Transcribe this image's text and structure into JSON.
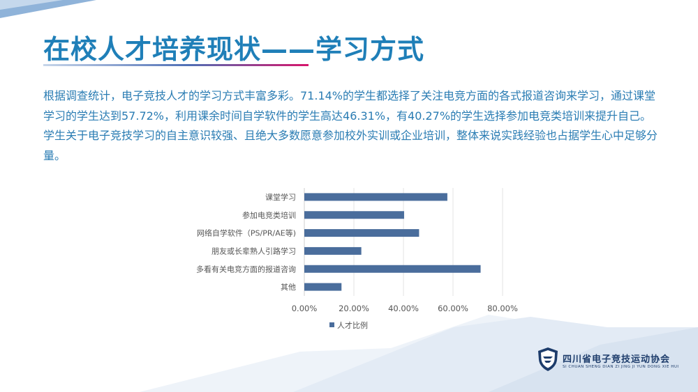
{
  "slide": {
    "title": "在校人才培养现状——学习方式",
    "body": "根据调查统计，电子竞技人才的学习方式丰富多彩。71.14%的学生都选择了关注电竞方面的各式报道咨询来学习，通过课堂学习的学生达到57.72%，利用课余时间自学软件的学生高达46.31%，有40.27%的学生选择参加电竞类培训来提升自己。学生关于电子竞技学习的自主意识较强、且绝大多数愿意参加校外实训或企业培训，整体来说实践经验也占据学生心中足够分量。"
  },
  "logo": {
    "name": "四川省电子竞技运动协会",
    "pinyin": "SI CHUAN SHENG DIAN ZI JING JI YUN DONG XIE HUI",
    "color": "#1d3c6b"
  },
  "chart_data": {
    "type": "bar",
    "orientation": "horizontal",
    "categories": [
      "课堂学习",
      "参加电竞类培训",
      "网络自学软件（PS/PR/AE等)",
      "朋友或长辈熟人引路学习",
      "多看有关电竞方面的报道咨询",
      "其他"
    ],
    "series": [
      {
        "name": "人才比例",
        "values": [
          57.72,
          40.27,
          46.31,
          23.0,
          71.14,
          15.0
        ],
        "color": "#4a6d9c"
      }
    ],
    "xlim": [
      0,
      80
    ],
    "xticks": [
      0,
      20,
      40,
      60,
      80
    ],
    "xtick_labels": [
      "0.00%",
      "20.00%",
      "40.00%",
      "60.00%",
      "80.00%"
    ],
    "grid": true,
    "legend": "bottom"
  }
}
